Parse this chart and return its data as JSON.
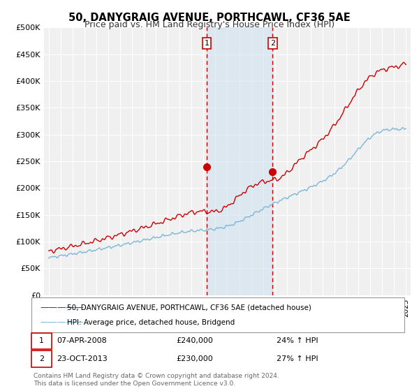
{
  "title": "50, DANYGRAIG AVENUE, PORTHCAWL, CF36 5AE",
  "subtitle": "Price paid vs. HM Land Registry's House Price Index (HPI)",
  "ylabel_ticks": [
    "£0",
    "£50K",
    "£100K",
    "£150K",
    "£200K",
    "£250K",
    "£300K",
    "£350K",
    "£400K",
    "£450K",
    "£500K"
  ],
  "ytick_values": [
    0,
    50000,
    100000,
    150000,
    200000,
    250000,
    300000,
    350000,
    400000,
    450000,
    500000
  ],
  "hpi_color": "#7ab8d9",
  "price_color": "#cc0000",
  "shaded_region_color": "#cce0f0",
  "vline_color": "#cc0000",
  "sale1_year": 2008.27,
  "sale1_price": 240000,
  "sale2_year": 2013.81,
  "sale2_price": 230000,
  "legend_line1": "50, DANYGRAIG AVENUE, PORTHCAWL, CF36 5AE (detached house)",
  "legend_line2": "HPI: Average price, detached house, Bridgend",
  "annotation1_label": "1",
  "annotation1_date": "07-APR-2008",
  "annotation1_price": "£240,000",
  "annotation1_hpi": "24% ↑ HPI",
  "annotation2_label": "2",
  "annotation2_date": "23-OCT-2013",
  "annotation2_price": "£230,000",
  "annotation2_hpi": "27% ↑ HPI",
  "footnote1": "Contains HM Land Registry data © Crown copyright and database right 2024.",
  "footnote2": "This data is licensed under the Open Government Licence v3.0.",
  "background_color": "#ffffff",
  "plot_bg_color": "#f0f0f0",
  "grid_color": "#ffffff"
}
